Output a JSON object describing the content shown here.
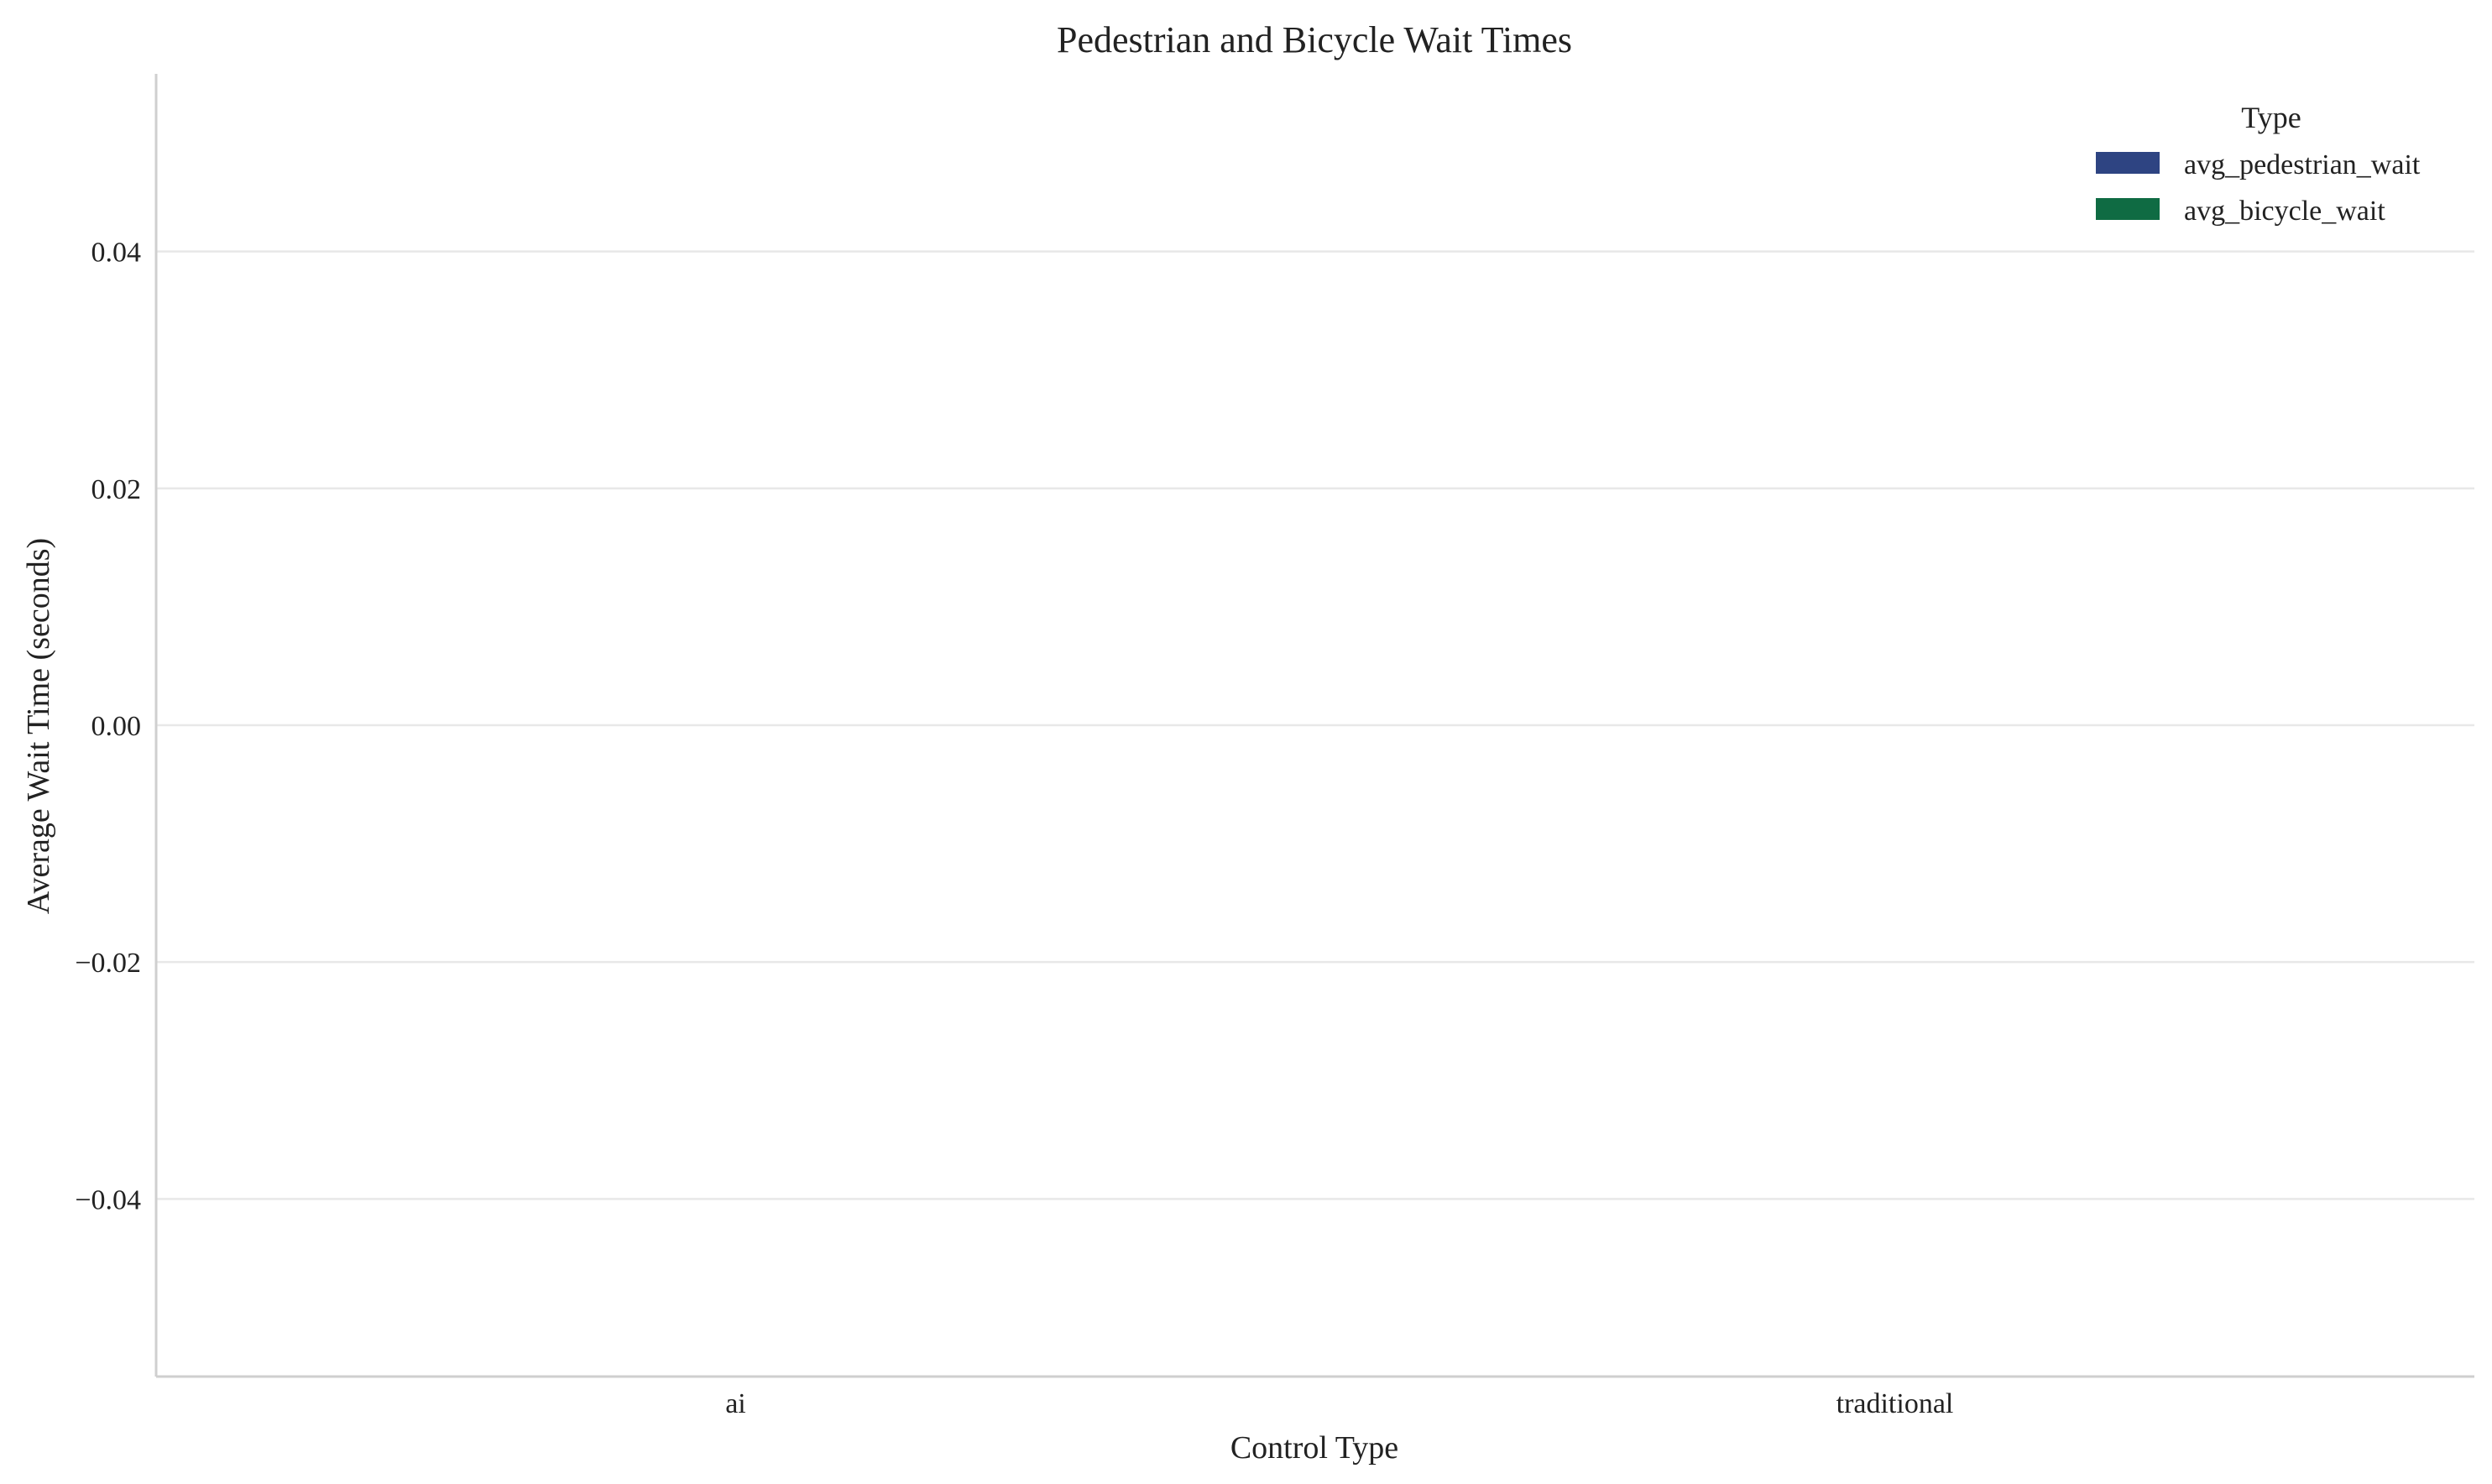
{
  "chart_data": {
    "type": "bar",
    "title": "Pedestrian and Bicycle Wait Times",
    "xlabel": "Control Type",
    "ylabel": "Average Wait Time (seconds)",
    "categories": [
      "ai",
      "traditional"
    ],
    "series": [
      {
        "name": "avg_pedestrian_wait",
        "color": "#2e4482",
        "values": [
          0,
          0
        ]
      },
      {
        "name": "avg_bicycle_wait",
        "color": "#0f6b43",
        "values": [
          0,
          0
        ]
      }
    ],
    "ylim": [
      -0.055,
      0.055
    ],
    "yticks": [
      -0.04,
      -0.02,
      0.0,
      0.02,
      0.04
    ],
    "ytick_labels": [
      "−0.04",
      "−0.02",
      "0.00",
      "0.02",
      "0.04"
    ],
    "grid": true,
    "legend": {
      "title": "Type",
      "placement": "top-right"
    }
  }
}
